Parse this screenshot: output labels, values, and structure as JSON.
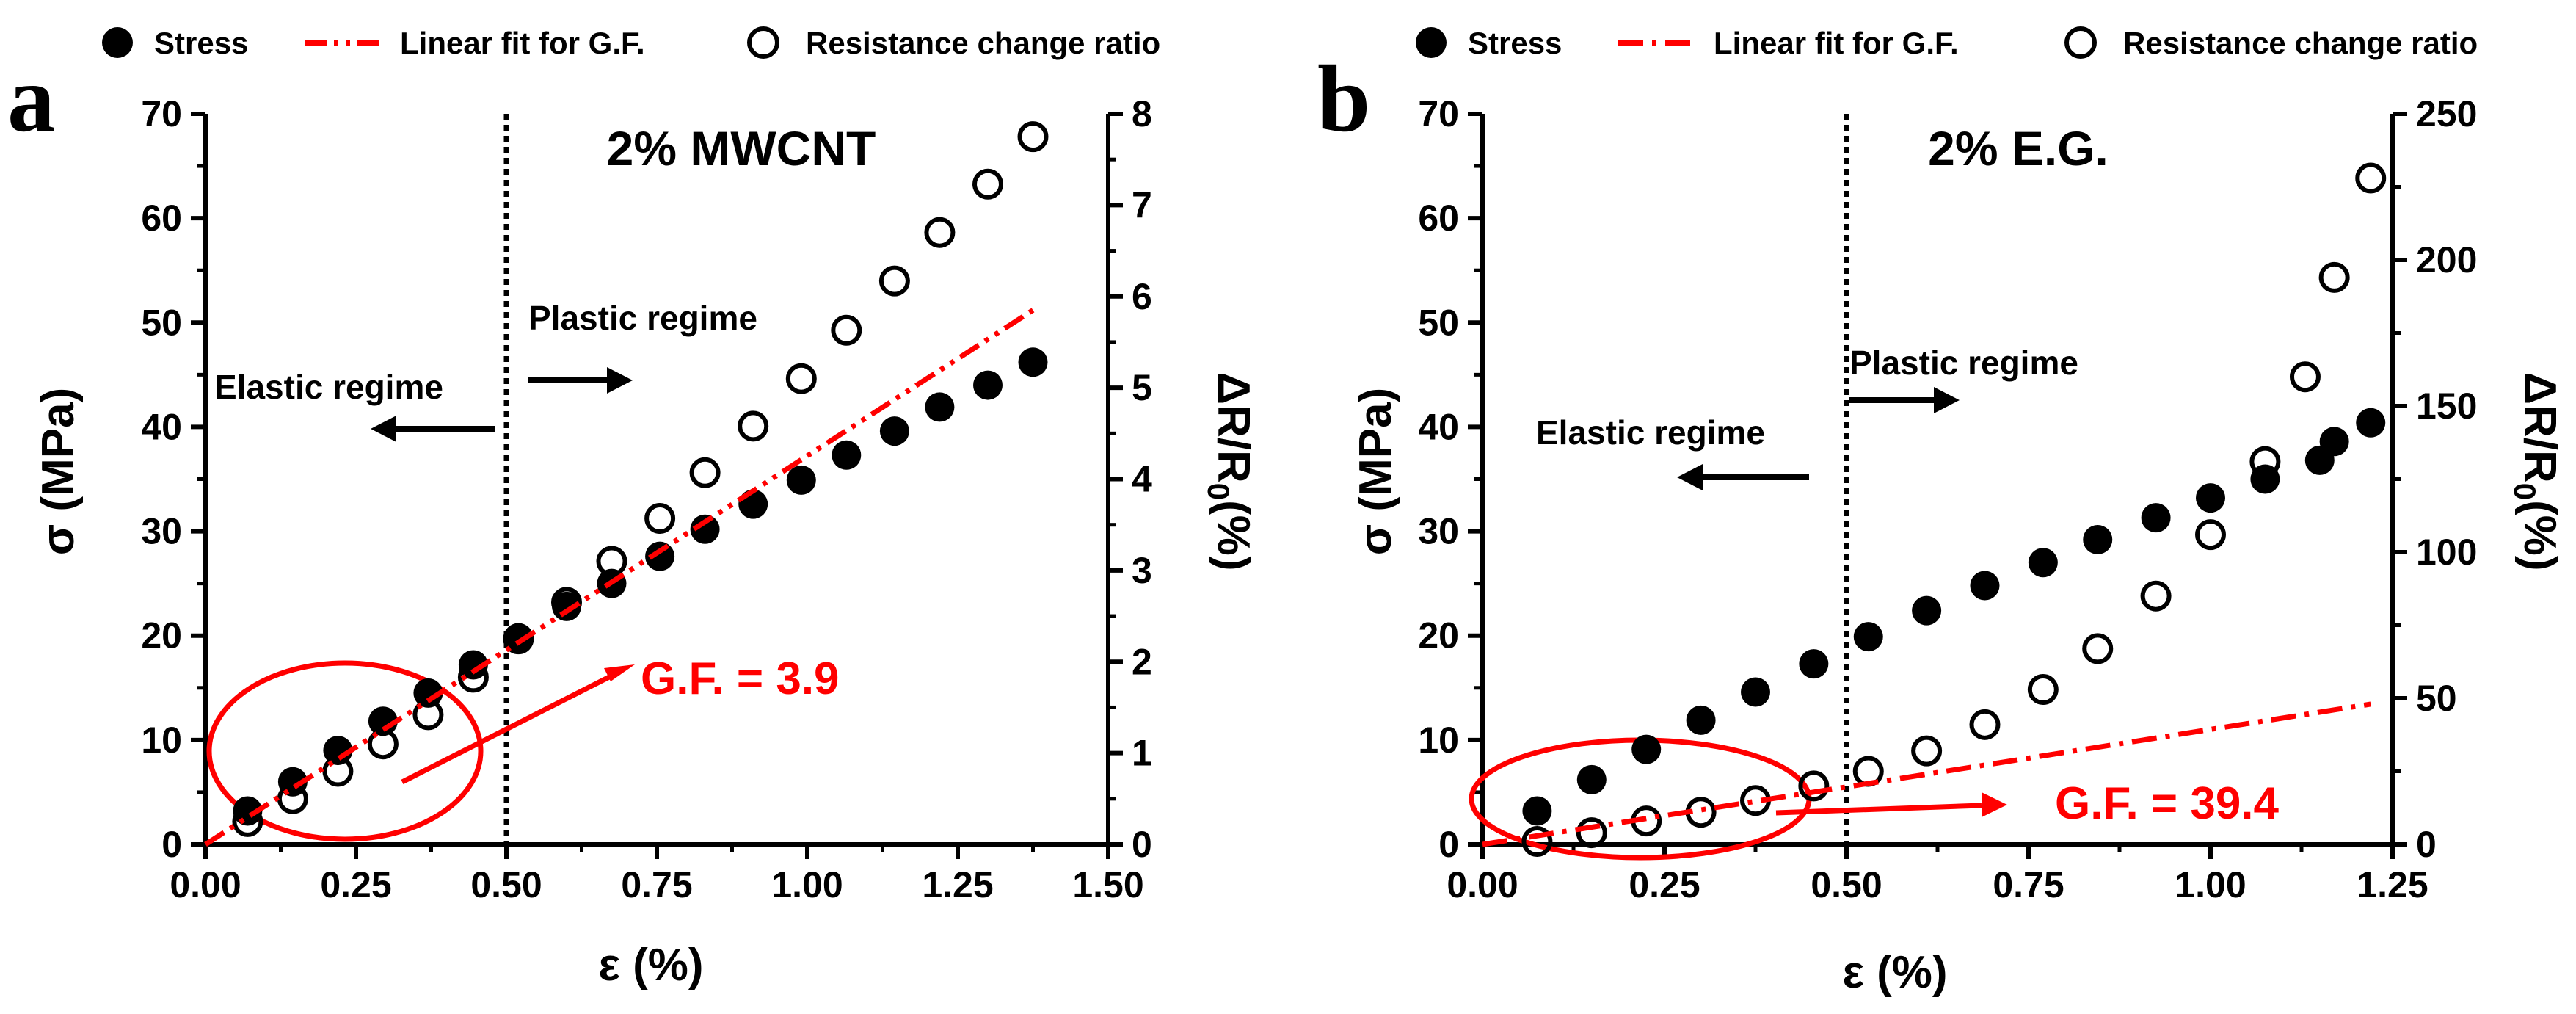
{
  "colors": {
    "fit": "#ff0000",
    "marker": "#000000",
    "axis": "#000000",
    "annotation": "#ff0000"
  },
  "legend": {
    "stress": "Stress",
    "fit": "Linear fit for G.F.",
    "resistance": "Resistance change ratio"
  },
  "chart_data": [
    {
      "type": "scatter",
      "panel_label": "a",
      "title": "2% MWCNT",
      "xlabel": "ε (%)",
      "ylabel": "σ (MPa)",
      "ylabel_right": "ΔR/R",
      "ylabel_right_sub": "0",
      "ylabel_right_tail": "(%)",
      "xlim": [
        0,
        1.5
      ],
      "ylim": [
        0,
        70
      ],
      "ylim_right": [
        0,
        8
      ],
      "xticks": [
        0,
        0.25,
        0.5,
        0.75,
        1.0,
        1.25,
        1.5
      ],
      "xtick_labels": [
        "0.00",
        "0.25",
        "0.50",
        "0.75",
        "1.00",
        "1.25",
        "1.50"
      ],
      "yticks": [
        0,
        10,
        20,
        30,
        40,
        50,
        60,
        70
      ],
      "ytick_labels": [
        "0",
        "10",
        "20",
        "30",
        "40",
        "50",
        "60",
        "70"
      ],
      "yticks_right": [
        0,
        1,
        2,
        3,
        4,
        5,
        6,
        7,
        8
      ],
      "ytick_right_labels": [
        "0",
        "1",
        "2",
        "3",
        "4",
        "5",
        "6",
        "7",
        "8"
      ],
      "divider_x": 0.5,
      "elastic_label": "Elastic regime",
      "plastic_label": "Plastic regime",
      "gf_label": "G.F. = 3.9",
      "series": [
        {
          "name": "Stress",
          "axis": "left",
          "marker": "filled",
          "x": [
            0.07,
            0.145,
            0.22,
            0.295,
            0.37,
            0.445,
            0.52,
            0.6,
            0.675,
            0.755,
            0.83,
            0.91,
            0.99,
            1.065,
            1.145,
            1.22,
            1.3,
            1.375
          ],
          "y": [
            3.2,
            6.0,
            9.0,
            11.8,
            14.5,
            17.2,
            19.8,
            22.8,
            25.0,
            27.6,
            30.2,
            32.6,
            34.9,
            37.3,
            39.6,
            41.9,
            44.0,
            46.2
          ]
        },
        {
          "name": "Resistance change ratio",
          "axis": "right",
          "marker": "open",
          "x": [
            0.07,
            0.145,
            0.22,
            0.295,
            0.37,
            0.445,
            0.52,
            0.6,
            0.675,
            0.755,
            0.83,
            0.91,
            0.99,
            1.065,
            1.145,
            1.22,
            1.3,
            1.375
          ],
          "y": [
            0.25,
            0.5,
            0.8,
            1.1,
            1.42,
            1.83,
            2.25,
            2.65,
            3.1,
            3.57,
            4.07,
            4.58,
            5.1,
            5.63,
            6.17,
            6.7,
            7.23,
            7.75
          ]
        },
        {
          "name": "Linear fit for G.F.",
          "axis": "right",
          "marker": "dashdotdot",
          "x": [
            0.0,
            1.375
          ],
          "y": [
            0.0,
            5.85
          ]
        }
      ]
    },
    {
      "type": "scatter",
      "panel_label": "b",
      "title": "2% E.G.",
      "xlabel": "ε (%)",
      "ylabel": "σ (MPa)",
      "ylabel_right": "ΔR/R",
      "ylabel_right_sub": "0",
      "ylabel_right_tail": "(%)",
      "xlim": [
        0,
        1.25
      ],
      "ylim": [
        0,
        70
      ],
      "ylim_right": [
        0,
        250
      ],
      "xticks": [
        0,
        0.25,
        0.5,
        0.75,
        1.0,
        1.25
      ],
      "xtick_labels": [
        "0.00",
        "0.25",
        "0.50",
        "0.75",
        "1.00",
        "1.25"
      ],
      "yticks": [
        0,
        10,
        20,
        30,
        40,
        50,
        60,
        70
      ],
      "ytick_labels": [
        "0",
        "10",
        "20",
        "30",
        "40",
        "50",
        "60",
        "70"
      ],
      "yticks_right": [
        0,
        50,
        100,
        150,
        200,
        250
      ],
      "ytick_right_labels": [
        "0",
        "50",
        "100",
        "150",
        "200",
        "250"
      ],
      "divider_x": 0.5,
      "elastic_label": "Elastic regime",
      "plastic_label": "Plastic regime",
      "gf_label": "G.F. = 39.4",
      "series": [
        {
          "name": "Stress",
          "axis": "left",
          "marker": "filled",
          "x": [
            0.075,
            0.15,
            0.225,
            0.3,
            0.375,
            0.455,
            0.53,
            0.61,
            0.69,
            0.77,
            0.845,
            0.925,
            1.0,
            1.075,
            1.15,
            1.17,
            1.22
          ],
          "y": [
            3.2,
            6.2,
            9.1,
            11.9,
            14.6,
            17.3,
            19.9,
            22.4,
            24.8,
            27.0,
            29.2,
            31.3,
            33.2,
            35.0,
            36.8,
            38.6,
            40.4
          ]
        },
        {
          "name": "Resistance change ratio",
          "axis": "right",
          "marker": "open",
          "x": [
            0.075,
            0.15,
            0.225,
            0.3,
            0.375,
            0.455,
            0.53,
            0.61,
            0.69,
            0.77,
            0.845,
            0.925,
            1.0,
            1.075,
            1.13,
            1.17,
            1.22
          ],
          "y": [
            1,
            4,
            8,
            11,
            15,
            20,
            25,
            32,
            41,
            53,
            67,
            85,
            106,
            131,
            160,
            194,
            228
          ]
        },
        {
          "name": "Linear fit for G.F.",
          "axis": "right",
          "marker": "dashdot",
          "x": [
            0.0,
            1.22
          ],
          "y": [
            0.0,
            48
          ]
        }
      ]
    }
  ]
}
